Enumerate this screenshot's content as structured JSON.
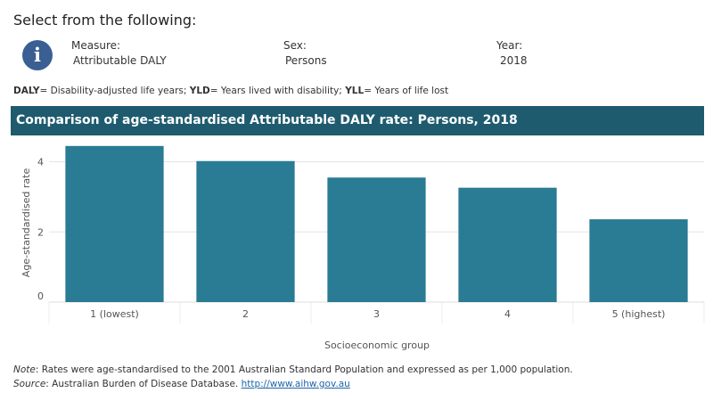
{
  "header": {
    "title": "Select from the following:",
    "info_icon": "info-icon",
    "info_glyph": "i",
    "filters": [
      {
        "label": "Measure:",
        "value": "Attributable DALY"
      },
      {
        "label": "Sex:",
        "value": "Persons"
      },
      {
        "label": "Year:",
        "value": "2018"
      }
    ]
  },
  "abbreviations": {
    "daly_key": "DALY",
    "daly_text": "= Disability-adjusted life years;",
    "yld_key": "YLD",
    "yld_text": "= Years lived with disability;",
    "yll_key": "YLL",
    "yll_text": "= Years of life lost"
  },
  "chart_title": "Comparison of age-standardised Attributable DALY rate:  Persons, 2018",
  "chart_data": {
    "type": "bar",
    "categories": [
      "1 (lowest)",
      "2",
      "3",
      "4",
      "5 (highest)"
    ],
    "values": [
      4.45,
      4.02,
      3.55,
      3.26,
      2.36
    ],
    "xlabel": "Socioeconomic group",
    "ylabel": "Age-standardised rate",
    "ylim": [
      0,
      4.75
    ],
    "yticks": [
      0,
      2,
      4
    ],
    "grid": true,
    "bar_color": "#2a7b94"
  },
  "notes": {
    "note_label": "Note",
    "note_text": ": Rates were age-standardised to the 2001 Australian Standard Population and expressed as per 1,000 population.",
    "source_label": "Source",
    "source_text": ": Australian Burden of Disease Database. ",
    "source_link": "http://www.aihw.gov.au"
  },
  "colors": {
    "banner": "#1e5b6f",
    "info_icon": "#3a5f93",
    "bar": "#2a7b94",
    "link": "#1f64a8"
  }
}
